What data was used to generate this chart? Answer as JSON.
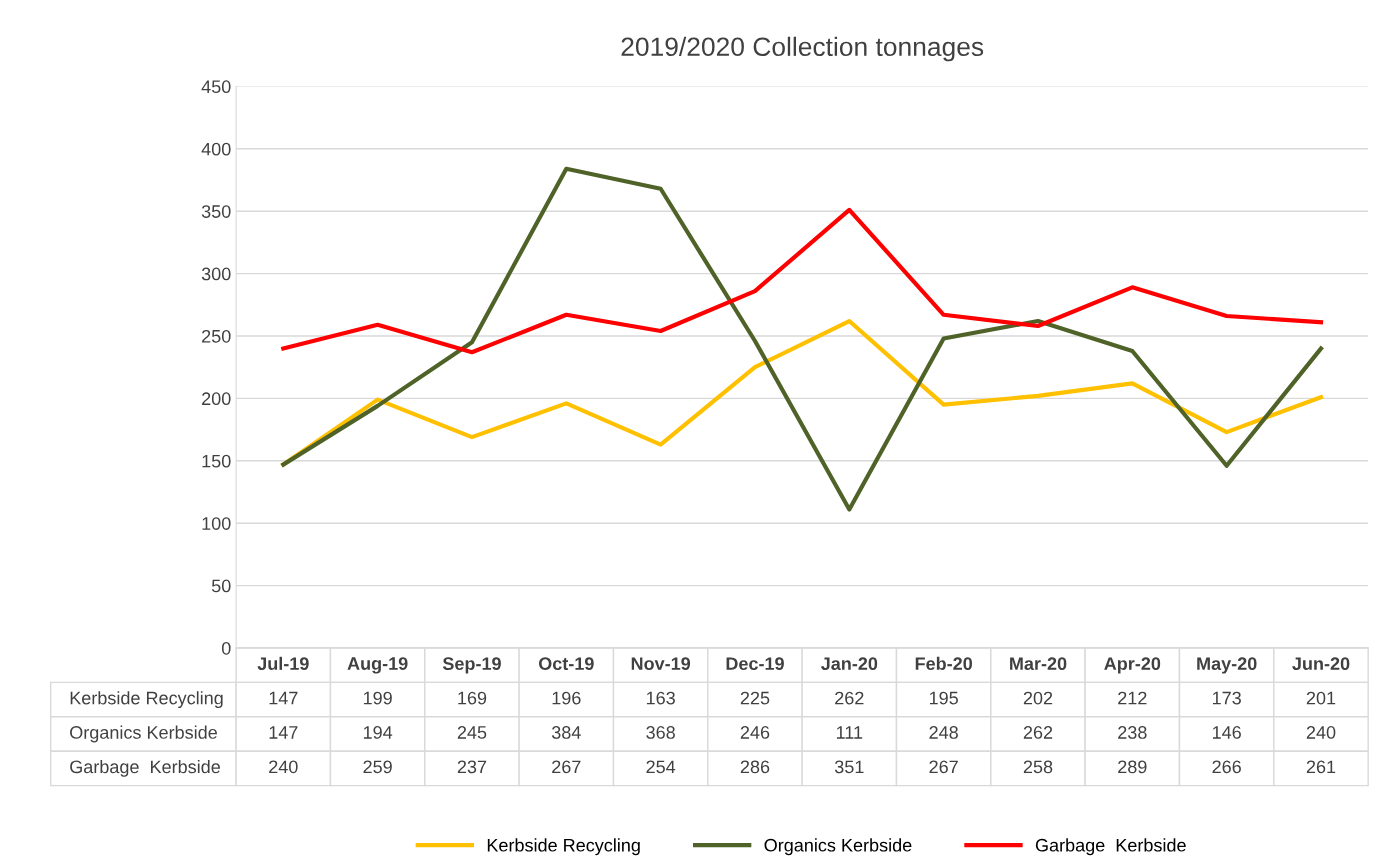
{
  "chart_data": {
    "type": "line",
    "title": "2019/2020 Collection tonnages",
    "categories": [
      "Jul-19",
      "Aug-19",
      "Sep-19",
      "Oct-19",
      "Nov-19",
      "Dec-19",
      "Jan-20",
      "Feb-20",
      "Mar-20",
      "Apr-20",
      "May-20",
      "Jun-20"
    ],
    "series": [
      {
        "name": "Kerbside Recycling",
        "color": "#ffc000",
        "values": [
          147,
          199,
          169,
          196,
          163,
          225,
          262,
          195,
          202,
          212,
          173,
          201
        ]
      },
      {
        "name": "Organics Kerbside",
        "color": "#4f6228",
        "values": [
          147,
          194,
          245,
          384,
          368,
          246,
          111,
          248,
          262,
          238,
          146,
          240
        ]
      },
      {
        "name": "Garbage  Kerbside",
        "color": "#ff0000",
        "values": [
          240,
          259,
          237,
          267,
          254,
          286,
          351,
          267,
          258,
          289,
          266,
          261
        ]
      }
    ],
    "ylim": [
      0,
      450
    ],
    "yticks": [
      0,
      50,
      100,
      150,
      200,
      250,
      300,
      350,
      400,
      450
    ],
    "grid": "y",
    "legend": "bottom",
    "data_labels": true,
    "marker": "none",
    "line_style": "solid"
  }
}
